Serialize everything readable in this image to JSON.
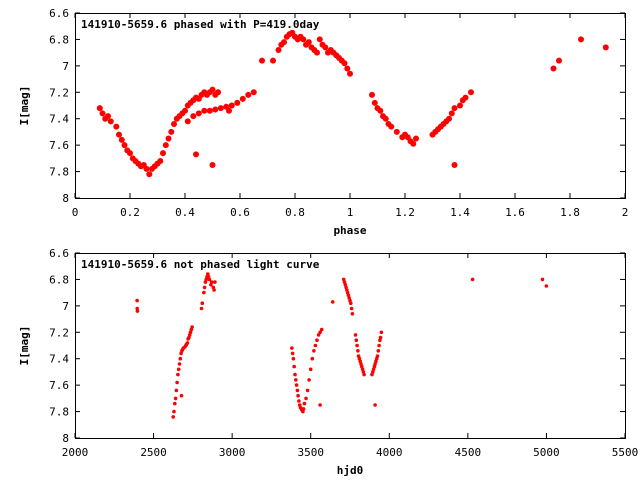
{
  "colors": {
    "points": "#ff0000",
    "axes": "#000000",
    "background": "#ffffff"
  },
  "chart_data": [
    {
      "type": "scatter",
      "title": "141910-5659.6 phased with P=419.0day",
      "xlabel": "phase",
      "ylabel": "I[mag]",
      "xlim": [
        0,
        2
      ],
      "ylim": [
        6.6,
        8
      ],
      "y_inverted": true,
      "grid": false,
      "x_ticks": [
        "0",
        "0.2",
        "0.4",
        "0.6",
        "0.8",
        "1",
        "1.2",
        "1.4",
        "1.6",
        "1.8",
        "2"
      ],
      "y_ticks": [
        "6.6",
        "6.8",
        "7",
        "7.2",
        "7.4",
        "7.6",
        "7.8",
        "8"
      ],
      "marker": "filled-circle",
      "series": [
        {
          "points": [
            [
              0.09,
              7.32
            ],
            [
              0.1,
              7.36
            ],
            [
              0.11,
              7.4
            ],
            [
              0.12,
              7.38
            ],
            [
              0.13,
              7.42
            ],
            [
              0.15,
              7.46
            ],
            [
              0.16,
              7.52
            ],
            [
              0.17,
              7.56
            ],
            [
              0.18,
              7.6
            ],
            [
              0.19,
              7.64
            ],
            [
              0.2,
              7.66
            ],
            [
              0.21,
              7.7
            ],
            [
              0.22,
              7.72
            ],
            [
              0.23,
              7.74
            ],
            [
              0.24,
              7.76
            ],
            [
              0.25,
              7.75
            ],
            [
              0.26,
              7.78
            ],
            [
              0.27,
              7.82
            ],
            [
              0.28,
              7.78
            ],
            [
              0.29,
              7.76
            ],
            [
              0.3,
              7.74
            ],
            [
              0.31,
              7.72
            ],
            [
              0.32,
              7.66
            ],
            [
              0.33,
              7.6
            ],
            [
              0.34,
              7.55
            ],
            [
              0.35,
              7.5
            ],
            [
              0.36,
              7.44
            ],
            [
              0.37,
              7.4
            ],
            [
              0.38,
              7.38
            ],
            [
              0.39,
              7.36
            ],
            [
              0.4,
              7.34
            ],
            [
              0.41,
              7.3
            ],
            [
              0.42,
              7.28
            ],
            [
              0.43,
              7.26
            ],
            [
              0.44,
              7.24
            ],
            [
              0.45,
              7.25
            ],
            [
              0.46,
              7.22
            ],
            [
              0.47,
              7.2
            ],
            [
              0.48,
              7.22
            ],
            [
              0.49,
              7.2
            ],
            [
              0.5,
              7.18
            ],
            [
              0.51,
              7.22
            ],
            [
              0.52,
              7.2
            ],
            [
              0.41,
              7.42
            ],
            [
              0.43,
              7.38
            ],
            [
              0.45,
              7.36
            ],
            [
              0.47,
              7.34
            ],
            [
              0.49,
              7.34
            ],
            [
              0.51,
              7.33
            ],
            [
              0.53,
              7.32
            ],
            [
              0.55,
              7.31
            ],
            [
              0.57,
              7.3
            ],
            [
              0.59,
              7.28
            ],
            [
              0.61,
              7.25
            ],
            [
              0.63,
              7.22
            ],
            [
              0.65,
              7.2
            ],
            [
              0.56,
              7.34
            ],
            [
              0.44,
              7.67
            ],
            [
              0.5,
              7.75
            ],
            [
              0.68,
              6.96
            ],
            [
              0.72,
              6.96
            ],
            [
              0.74,
              6.88
            ],
            [
              0.75,
              6.84
            ],
            [
              0.76,
              6.82
            ],
            [
              0.77,
              6.78
            ],
            [
              0.78,
              6.76
            ],
            [
              0.79,
              6.75
            ],
            [
              0.8,
              6.78
            ],
            [
              0.81,
              6.8
            ],
            [
              0.82,
              6.78
            ],
            [
              0.83,
              6.8
            ],
            [
              0.84,
              6.84
            ],
            [
              0.85,
              6.82
            ],
            [
              0.86,
              6.86
            ],
            [
              0.87,
              6.88
            ],
            [
              0.88,
              6.9
            ],
            [
              0.89,
              6.8
            ],
            [
              0.9,
              6.84
            ],
            [
              0.91,
              6.86
            ],
            [
              0.92,
              6.9
            ],
            [
              0.93,
              6.88
            ],
            [
              0.94,
              6.9
            ],
            [
              0.95,
              6.92
            ],
            [
              0.96,
              6.94
            ],
            [
              0.97,
              6.96
            ],
            [
              0.98,
              6.98
            ],
            [
              0.99,
              7.02
            ],
            [
              1.0,
              7.06
            ],
            [
              1.08,
              7.22
            ],
            [
              1.09,
              7.28
            ],
            [
              1.1,
              7.32
            ],
            [
              1.11,
              7.34
            ],
            [
              1.12,
              7.38
            ],
            [
              1.13,
              7.4
            ],
            [
              1.14,
              7.44
            ],
            [
              1.15,
              7.46
            ],
            [
              1.17,
              7.5
            ],
            [
              1.19,
              7.54
            ],
            [
              1.2,
              7.52
            ],
            [
              1.21,
              7.54
            ],
            [
              1.22,
              7.57
            ],
            [
              1.23,
              7.59
            ],
            [
              1.24,
              7.55
            ],
            [
              1.3,
              7.52
            ],
            [
              1.31,
              7.5
            ],
            [
              1.32,
              7.48
            ],
            [
              1.33,
              7.46
            ],
            [
              1.34,
              7.44
            ],
            [
              1.35,
              7.42
            ],
            [
              1.36,
              7.4
            ],
            [
              1.37,
              7.36
            ],
            [
              1.38,
              7.32
            ],
            [
              1.4,
              7.3
            ],
            [
              1.41,
              7.26
            ],
            [
              1.42,
              7.24
            ],
            [
              1.44,
              7.2
            ],
            [
              1.38,
              7.75
            ],
            [
              1.74,
              7.02
            ],
            [
              1.76,
              6.96
            ],
            [
              1.84,
              6.8
            ],
            [
              1.93,
              6.86
            ]
          ]
        }
      ]
    },
    {
      "type": "scatter",
      "title": "141910-5659.6 not phased light curve",
      "xlabel": "hjd0",
      "ylabel": "I[mag]",
      "xlim": [
        2000,
        5500
      ],
      "ylim": [
        6.6,
        8
      ],
      "y_inverted": true,
      "grid": false,
      "x_ticks": [
        "2000",
        "2500",
        "3000",
        "3500",
        "4000",
        "4500",
        "5000",
        "5500"
      ],
      "y_ticks": [
        "6.6",
        "6.8",
        "7",
        "7.2",
        "7.4",
        "7.6",
        "7.8",
        "8"
      ],
      "marker": "small-circle",
      "series": [
        {
          "points": [
            [
              2395,
              6.96
            ],
            [
              2396,
              7.02
            ],
            [
              2397,
              7.04
            ],
            [
              2625,
              7.84
            ],
            [
              2630,
              7.8
            ],
            [
              2635,
              7.74
            ],
            [
              2640,
              7.7
            ],
            [
              2645,
              7.64
            ],
            [
              2650,
              7.58
            ],
            [
              2655,
              7.52
            ],
            [
              2660,
              7.48
            ],
            [
              2665,
              7.44
            ],
            [
              2670,
              7.4
            ],
            [
              2675,
              7.36
            ],
            [
              2680,
              7.34
            ],
            [
              2685,
              7.33
            ],
            [
              2690,
              7.32
            ],
            [
              2700,
              7.31
            ],
            [
              2705,
              7.3
            ],
            [
              2710,
              7.29
            ],
            [
              2715,
              7.28
            ],
            [
              2720,
              7.25
            ],
            [
              2725,
              7.24
            ],
            [
              2730,
              7.22
            ],
            [
              2735,
              7.2
            ],
            [
              2740,
              7.18
            ],
            [
              2745,
              7.16
            ],
            [
              2678,
              7.68
            ],
            [
              2805,
              7.02
            ],
            [
              2810,
              6.98
            ],
            [
              2820,
              6.9
            ],
            [
              2825,
              6.86
            ],
            [
              2830,
              6.82
            ],
            [
              2835,
              6.8
            ],
            [
              2840,
              6.78
            ],
            [
              2845,
              6.76
            ],
            [
              2850,
              6.78
            ],
            [
              2855,
              6.8
            ],
            [
              2865,
              6.84
            ],
            [
              2870,
              6.82
            ],
            [
              2880,
              6.86
            ],
            [
              2885,
              6.88
            ],
            [
              2890,
              6.82
            ],
            [
              3380,
              7.32
            ],
            [
              3385,
              7.36
            ],
            [
              3390,
              7.4
            ],
            [
              3395,
              7.46
            ],
            [
              3400,
              7.52
            ],
            [
              3405,
              7.56
            ],
            [
              3410,
              7.6
            ],
            [
              3415,
              7.64
            ],
            [
              3420,
              7.68
            ],
            [
              3425,
              7.72
            ],
            [
              3430,
              7.75
            ],
            [
              3435,
              7.77
            ],
            [
              3440,
              7.78
            ],
            [
              3445,
              7.79
            ],
            [
              3450,
              7.8
            ],
            [
              3455,
              7.78
            ],
            [
              3460,
              7.74
            ],
            [
              3470,
              7.7
            ],
            [
              3480,
              7.64
            ],
            [
              3490,
              7.56
            ],
            [
              3500,
              7.48
            ],
            [
              3510,
              7.4
            ],
            [
              3520,
              7.34
            ],
            [
              3530,
              7.3
            ],
            [
              3540,
              7.26
            ],
            [
              3550,
              7.22
            ],
            [
              3560,
              7.2
            ],
            [
              3570,
              7.18
            ],
            [
              3560,
              7.75
            ],
            [
              3640,
              6.97
            ],
            [
              3710,
              6.8
            ],
            [
              3715,
              6.82
            ],
            [
              3720,
              6.84
            ],
            [
              3725,
              6.86
            ],
            [
              3730,
              6.88
            ],
            [
              3735,
              6.9
            ],
            [
              3740,
              6.92
            ],
            [
              3745,
              6.94
            ],
            [
              3750,
              6.96
            ],
            [
              3755,
              6.98
            ],
            [
              3760,
              7.02
            ],
            [
              3765,
              7.06
            ],
            [
              3785,
              7.22
            ],
            [
              3790,
              7.26
            ],
            [
              3795,
              7.3
            ],
            [
              3800,
              7.34
            ],
            [
              3805,
              7.38
            ],
            [
              3810,
              7.4
            ],
            [
              3815,
              7.42
            ],
            [
              3820,
              7.44
            ],
            [
              3825,
              7.46
            ],
            [
              3830,
              7.48
            ],
            [
              3835,
              7.5
            ],
            [
              3840,
              7.52
            ],
            [
              3890,
              7.52
            ],
            [
              3895,
              7.5
            ],
            [
              3900,
              7.48
            ],
            [
              3905,
              7.46
            ],
            [
              3910,
              7.44
            ],
            [
              3915,
              7.42
            ],
            [
              3920,
              7.4
            ],
            [
              3925,
              7.38
            ],
            [
              3930,
              7.34
            ],
            [
              3935,
              7.3
            ],
            [
              3940,
              7.26
            ],
            [
              3945,
              7.24
            ],
            [
              3950,
              7.2
            ],
            [
              3910,
              7.75
            ],
            [
              4530,
              6.8
            ],
            [
              4975,
              6.8
            ],
            [
              5000,
              6.85
            ]
          ]
        }
      ]
    }
  ]
}
